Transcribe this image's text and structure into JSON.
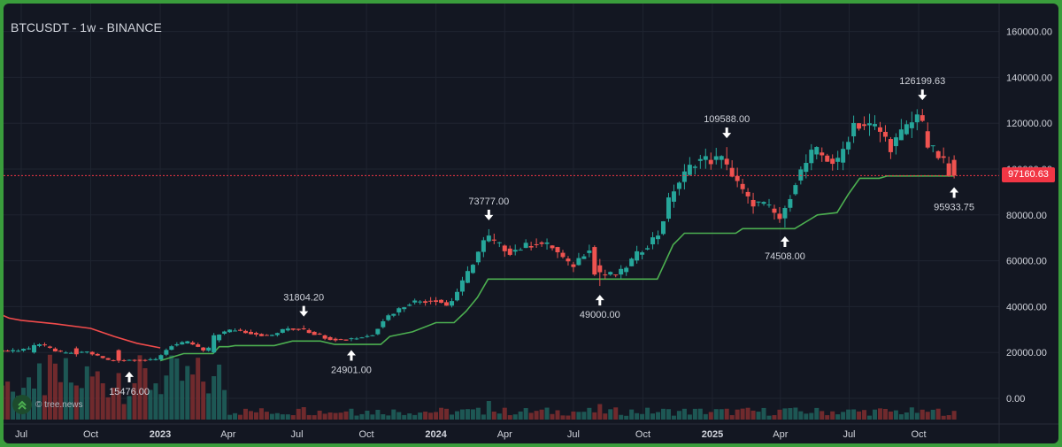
{
  "chart_data": {
    "type": "candlestick",
    "title": "BTCUSDT - 1w - BINANCE",
    "last_price_label": "97160.63",
    "last_price": 97160.63,
    "watermark": "© tree.news",
    "ylim": [
      -10000,
      165000
    ],
    "y_ticks": [
      0,
      20000,
      40000,
      60000,
      80000,
      100000,
      120000,
      140000,
      160000
    ],
    "y_tick_labels": [
      "0.00",
      "20000.00",
      "40000.00",
      "60000.00",
      "80000.00",
      "100000.00",
      "120000.00",
      "140000.00",
      "160000.00"
    ],
    "x_ticks": [
      {
        "label": "Jul",
        "date": "2022-07-01",
        "bold": false
      },
      {
        "label": "Oct",
        "date": "2022-10-01",
        "bold": false
      },
      {
        "label": "2023",
        "date": "2023-01-01",
        "bold": true
      },
      {
        "label": "Apr",
        "date": "2023-04-01",
        "bold": false
      },
      {
        "label": "Jul",
        "date": "2023-07-01",
        "bold": false
      },
      {
        "label": "Oct",
        "date": "2023-10-01",
        "bold": false
      },
      {
        "label": "2024",
        "date": "2024-01-01",
        "bold": true
      },
      {
        "label": "Apr",
        "date": "2024-04-01",
        "bold": false
      },
      {
        "label": "Jul",
        "date": "2024-07-01",
        "bold": false
      },
      {
        "label": "Oct",
        "date": "2024-10-01",
        "bold": false
      },
      {
        "label": "2025",
        "date": "2025-01-01",
        "bold": true
      },
      {
        "label": "Apr",
        "date": "2025-04-01",
        "bold": false
      },
      {
        "label": "Jul",
        "date": "2025-07-01",
        "bold": false
      },
      {
        "label": "Oct",
        "date": "2025-10-01",
        "bold": false
      }
    ],
    "price_path": [
      [
        "2022-06-01",
        21000
      ],
      [
        "2022-07-01",
        20500
      ],
      [
        "2022-08-01",
        23500
      ],
      [
        "2022-09-01",
        19500
      ],
      [
        "2022-10-01",
        20500
      ],
      [
        "2022-11-01",
        16500
      ],
      [
        "2022-12-01",
        16800
      ],
      [
        "2023-01-01",
        16600
      ],
      [
        "2023-01-22",
        23000
      ],
      [
        "2023-02-15",
        24500
      ],
      [
        "2023-03-10",
        20000
      ],
      [
        "2023-03-25",
        28000
      ],
      [
        "2023-04-15",
        30000
      ],
      [
        "2023-06-01",
        27000
      ],
      [
        "2023-06-25",
        30500
      ],
      [
        "2023-07-15",
        30000
      ],
      [
        "2023-08-20",
        26000
      ],
      [
        "2023-09-11",
        25500
      ],
      [
        "2023-10-15",
        27500
      ],
      [
        "2023-11-01",
        35000
      ],
      [
        "2023-12-05",
        42000
      ],
      [
        "2024-01-10",
        43000
      ],
      [
        "2024-01-24",
        40000
      ],
      [
        "2024-02-15",
        52000
      ],
      [
        "2024-03-01",
        62000
      ],
      [
        "2024-03-14",
        70000
      ],
      [
        "2024-04-15",
        64000
      ],
      [
        "2024-05-20",
        68000
      ],
      [
        "2024-06-10",
        66000
      ],
      [
        "2024-07-05",
        57000
      ],
      [
        "2024-07-29",
        66000
      ],
      [
        "2024-08-05",
        54000
      ],
      [
        "2024-09-06",
        54000
      ],
      [
        "2024-10-01",
        63000
      ],
      [
        "2024-10-29",
        72000
      ],
      [
        "2024-11-15",
        90000
      ],
      [
        "2024-12-17",
        104000
      ],
      [
        "2025-01-20",
        104000
      ],
      [
        "2025-02-25",
        86000
      ],
      [
        "2025-03-20",
        84000
      ],
      [
        "2025-04-08",
        78000
      ],
      [
        "2025-04-28",
        95000
      ],
      [
        "2025-05-22",
        108000
      ],
      [
        "2025-06-22",
        102000
      ],
      [
        "2025-07-14",
        120000
      ],
      [
        "2025-08-14",
        118000
      ],
      [
        "2025-09-01",
        110000
      ],
      [
        "2025-10-06",
        123000
      ],
      [
        "2025-10-20",
        110000
      ],
      [
        "2025-11-08",
        104000
      ],
      [
        "2025-11-17",
        97160
      ]
    ],
    "weeks": [
      {
        "date": "2022-06-20",
        "open": 20500,
        "high": 21900,
        "low": 19800,
        "close": 21000,
        "volume": 9000
      },
      {
        "date": "2022-07-20",
        "open": 20000,
        "high": 24200,
        "low": 19500,
        "close": 23200,
        "volume": 10000
      },
      {
        "date": "2022-09-10",
        "open": 21800,
        "high": 22600,
        "low": 18200,
        "close": 19200,
        "volume": 11000
      },
      {
        "date": "2022-11-10",
        "open": 21000,
        "high": 21400,
        "low": 15476,
        "close": 16400,
        "volume": 15000
      },
      {
        "date": "2023-03-15",
        "open": 20000,
        "high": 28500,
        "low": 19600,
        "close": 27500,
        "volume": 14000
      },
      {
        "date": "2023-07-10",
        "open": 30500,
        "high": 31804.2,
        "low": 29800,
        "close": 30200,
        "volume": 4000
      },
      {
        "date": "2023-09-11",
        "open": 25900,
        "high": 26500,
        "low": 24901,
        "close": 26200,
        "volume": 3500
      },
      {
        "date": "2024-03-11",
        "open": 68500,
        "high": 73777,
        "low": 68000,
        "close": 71000,
        "volume": 6000
      },
      {
        "date": "2024-08-05",
        "open": 58000,
        "high": 60800,
        "low": 49000,
        "close": 55000,
        "volume": 5000
      },
      {
        "date": "2025-01-20",
        "open": 104500,
        "high": 109588,
        "low": 99500,
        "close": 102000,
        "volume": 3500
      },
      {
        "date": "2025-04-07",
        "open": 78500,
        "high": 84000,
        "low": 74508,
        "close": 83000,
        "volume": 3600
      },
      {
        "date": "2025-10-06",
        "open": 123500,
        "high": 126199.63,
        "low": 120500,
        "close": 121000,
        "volume": 3200
      },
      {
        "date": "2025-11-17",
        "open": 104000,
        "high": 106000,
        "low": 95933.75,
        "close": 97160.63,
        "volume": 2800
      }
    ],
    "trail_red": [
      [
        "2022-05-25",
        38000
      ],
      [
        "2022-06-15",
        35000
      ],
      [
        "2022-07-01",
        34000
      ],
      [
        "2022-08-15",
        32500
      ],
      [
        "2022-10-01",
        30500
      ],
      [
        "2022-11-01",
        27000
      ],
      [
        "2022-12-01",
        24000
      ],
      [
        "2023-01-01",
        22000
      ]
    ],
    "trail_green": [
      [
        "2023-01-01",
        16400
      ],
      [
        "2023-01-15",
        17800
      ],
      [
        "2023-02-01",
        19500
      ],
      [
        "2023-03-01",
        19500
      ],
      [
        "2023-03-12",
        19500
      ],
      [
        "2023-03-20",
        22500
      ],
      [
        "2023-04-01",
        22500
      ],
      [
        "2023-04-10",
        23000
      ],
      [
        "2023-06-01",
        23000
      ],
      [
        "2023-06-25",
        25000
      ],
      [
        "2023-08-01",
        25000
      ],
      [
        "2023-08-20",
        23500
      ],
      [
        "2023-10-20",
        23500
      ],
      [
        "2023-11-01",
        27000
      ],
      [
        "2023-12-01",
        29000
      ],
      [
        "2024-01-01",
        33000
      ],
      [
        "2024-01-25",
        33000
      ],
      [
        "2024-02-10",
        38000
      ],
      [
        "2024-02-25",
        44000
      ],
      [
        "2024-03-10",
        52000
      ],
      [
        "2024-10-20",
        52000
      ],
      [
        "2024-11-10",
        67000
      ],
      [
        "2024-11-25",
        72000
      ],
      [
        "2025-02-01",
        72000
      ],
      [
        "2025-02-10",
        74000
      ],
      [
        "2025-04-20",
        74000
      ],
      [
        "2025-05-10",
        78000
      ],
      [
        "2025-05-20",
        80000
      ],
      [
        "2025-06-15",
        81000
      ],
      [
        "2025-06-30",
        89000
      ],
      [
        "2025-07-15",
        96000
      ],
      [
        "2025-08-10",
        96000
      ],
      [
        "2025-08-20",
        97000
      ],
      [
        "2025-11-17",
        97000
      ]
    ],
    "annotations": [
      {
        "label": "15476.00",
        "date": "2022-11-21",
        "price": 15476,
        "type": "low"
      },
      {
        "label": "31804.20",
        "date": "2023-07-10",
        "price": 31804.2,
        "type": "high"
      },
      {
        "label": "24901.00",
        "date": "2023-09-11",
        "price": 24901,
        "type": "low"
      },
      {
        "label": "73777.00",
        "date": "2024-03-11",
        "price": 73777,
        "type": "high"
      },
      {
        "label": "49000.00",
        "date": "2024-08-05",
        "price": 49000,
        "type": "low"
      },
      {
        "label": "109588.00",
        "date": "2025-01-20",
        "price": 109588,
        "type": "high"
      },
      {
        "label": "74508.00",
        "date": "2025-04-07",
        "price": 74508,
        "type": "low"
      },
      {
        "label": "126199.63",
        "date": "2025-10-06",
        "price": 126199.63,
        "type": "high"
      },
      {
        "label": "95933.75",
        "date": "2025-11-17",
        "price": 95933.75,
        "type": "low"
      }
    ],
    "colors": {
      "background": "#131722",
      "frame": "#3a9d3c",
      "up": "#26a69a",
      "down": "#ef5350",
      "trail_green": "#4caf50",
      "trail_red": "#f04b4b",
      "grid": "#1f2430",
      "text": "#d1d4dc",
      "last_price": "#f23645"
    }
  }
}
